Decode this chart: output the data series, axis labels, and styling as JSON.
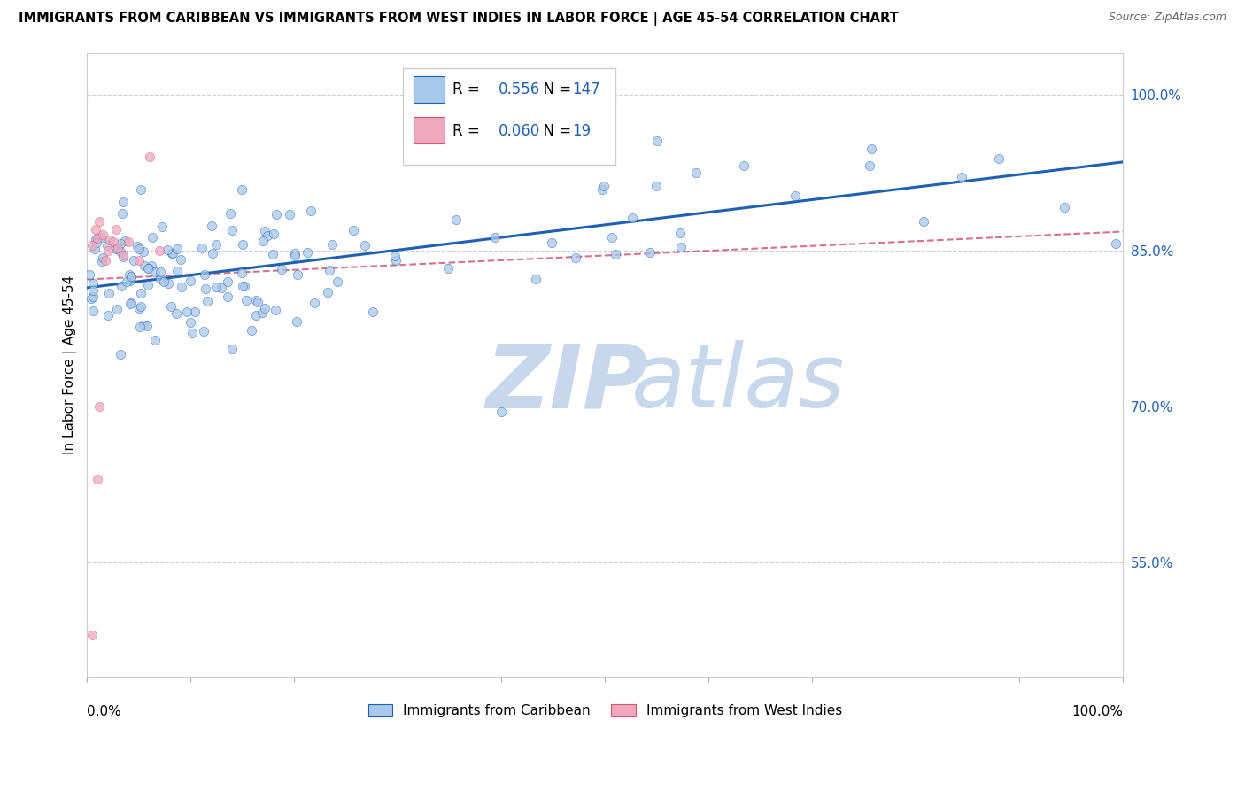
{
  "title": "IMMIGRANTS FROM CARIBBEAN VS IMMIGRANTS FROM WEST INDIES IN LABOR FORCE | AGE 45-54 CORRELATION CHART",
  "source": "Source: ZipAtlas.com",
  "xlabel_bottom_left": "0.0%",
  "xlabel_bottom_right": "100.0%",
  "ylabel": "In Labor Force | Age 45-54",
  "ylabel_right_labels": [
    "100.0%",
    "85.0%",
    "70.0%",
    "55.0%"
  ],
  "ylabel_right_values": [
    1.0,
    0.85,
    0.7,
    0.55
  ],
  "legend_label1": "Immigrants from Caribbean",
  "legend_label2": "Immigrants from West Indies",
  "R1": 0.556,
  "N1": 147,
  "R2": 0.06,
  "N2": 19,
  "color_blue": "#A8C8EC",
  "color_pink": "#F0A8BC",
  "color_blue_line": "#2060B0",
  "color_pink_line": "#D05878",
  "color_stats": "#2060B0",
  "watermark_zip": "ZIP",
  "watermark_atlas": "atlas",
  "watermark_color": "#C8D8EC",
  "xmin": 0.0,
  "xmax": 1.0,
  "ymin": 0.44,
  "ymax": 1.04,
  "blue_line_x0": 0.0,
  "blue_line_y0": 0.814,
  "blue_line_x1": 1.0,
  "blue_line_y1": 0.935,
  "pink_line_x0": 0.0,
  "pink_line_y0": 0.822,
  "pink_line_x1": 1.0,
  "pink_line_y1": 0.868
}
